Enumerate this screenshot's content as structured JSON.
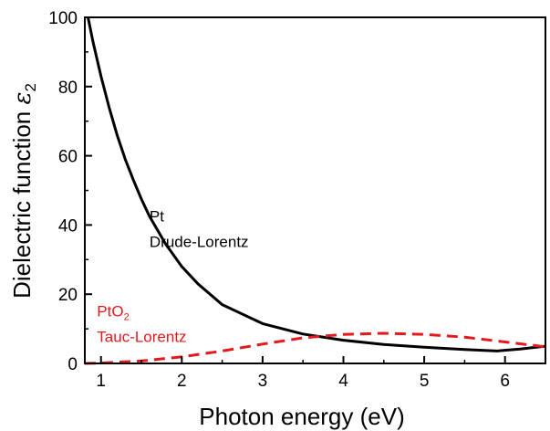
{
  "chart_data": {
    "type": "line",
    "xlabel": "Photon energy (eV)",
    "ylabel": {
      "text": "Dielectric function ",
      "symbol": "ε",
      "subscript": "2"
    },
    "xlim": [
      0.8,
      6.5
    ],
    "ylim": [
      0,
      100
    ],
    "x_ticks": [
      1,
      2,
      3,
      4,
      5,
      6
    ],
    "y_ticks": [
      0,
      20,
      40,
      60,
      80,
      100
    ],
    "grid": false,
    "series": [
      {
        "color": "#000000",
        "style": "solid",
        "x": [
          0.84,
          0.9,
          1.0,
          1.1,
          1.2,
          1.3,
          1.4,
          1.5,
          1.6,
          1.8,
          2.0,
          2.2,
          2.5,
          3.0,
          3.5,
          4.0,
          4.5,
          5.0,
          5.5,
          5.9,
          6.2,
          6.5
        ],
        "y": [
          100,
          93,
          83,
          74,
          66,
          59,
          53,
          47.5,
          42.5,
          34.5,
          28,
          23,
          17,
          11.5,
          8.5,
          6.7,
          5.5,
          4.7,
          4.0,
          3.6,
          4.2,
          5.0
        ]
      },
      {
        "color": "#e31a1c",
        "style": "dashed",
        "x": [
          0.8,
          1.0,
          1.5,
          2.0,
          2.5,
          3.0,
          3.5,
          4.0,
          4.5,
          5.0,
          5.5,
          6.0,
          6.5
        ],
        "y": [
          0,
          0.1,
          0.7,
          1.9,
          3.6,
          5.6,
          7.4,
          8.4,
          8.7,
          8.4,
          7.6,
          6.2,
          4.8
        ]
      }
    ],
    "annotations": [
      {
        "lines": [
          "Pt",
          "Drude-Lorentz"
        ],
        "color": "#000000",
        "at": [
          1.6,
          41
        ]
      },
      {
        "lines": [
          "PtO",
          "Tauc-Lorentz"
        ],
        "sub": "2",
        "color": "#e31a1c",
        "at": [
          0.95,
          13.6
        ]
      }
    ]
  }
}
